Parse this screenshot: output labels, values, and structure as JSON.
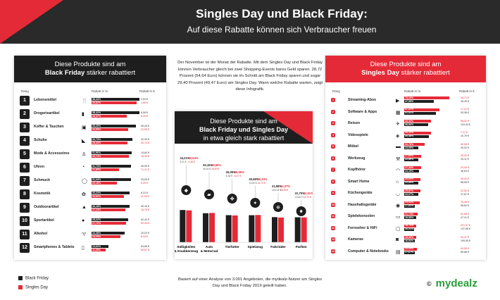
{
  "header": {
    "title": "Singles Day und Black Friday:",
    "subtitle": "Auf diese Rabatte können sich Verbraucher freuen"
  },
  "left_panel": {
    "line1": "Diese Produkte sind am",
    "line2_bold": "Black Friday",
    "line2_rest": " stärker rabattiert",
    "col_rank": "Rang",
    "col_pct": "Rabatt in %",
    "col_eur": "Rabatt in €"
  },
  "right_panel": {
    "line1": "Diese Produkte sind am",
    "line2_bold": "Singles Day",
    "line2_rest": " stärker rabattiert",
    "col_rank": "Rang",
    "col_pct": "Rabatt in %",
    "col_eur": "Rabatt in €"
  },
  "middle": {
    "intro": "Der November ist der Monat der Rabatte. Mit dem Singles Day und Black Friday können Verbraucher gleich bei zwei Shopping-Events bares Geld sparen. 28,72 Prozent (54,64 Euro) können sie im Schnitt am Black Friday sparen und sogar 29,40 Prozent (49,47 Euro) am Singles Day. Wann welche Rabatte warten, zeigt diese Infografik.",
    "panel_line1": "Diese Produkte sind am",
    "panel_line2": "Black Friday und Singles Day",
    "panel_line3": "in etwa gleich stark rabattiert"
  },
  "legend": {
    "black_friday": "Black Friday",
    "singles_day": "Singles Day"
  },
  "footer": "Basiert auf einer Analyse von 3.001 Angeboten, die mydealz-Nutzer am Singles Day und Black Friday 2019 geteilt haben.",
  "logo": {
    "copyright": "©",
    "brand": "mydealz"
  },
  "colors": {
    "black_friday": "#1e1e1e",
    "singles_day": "#e52a37"
  },
  "chart_data": [
    {
      "type": "bar",
      "title": "Diese Produkte sind am Black Friday stärker rabattiert",
      "categories": [
        "Lebensmittel",
        "Drogerieartikel",
        "Koffer & Taschen",
        "Schuhe",
        "Mode & Accessoires",
        "Uhren",
        "Schmuck",
        "Kosmetik",
        "Outdoorartikel",
        "Sportartikel",
        "Alkohol",
        "Smartphones & Tablets"
      ],
      "icons": [
        "cutlery-icon",
        "bottle-icon",
        "suitcase-icon",
        "shoe-icon",
        "shirt-icon",
        "clock-icon",
        "ring-icon",
        "lotus-icon",
        "mountain-icon",
        "ball-icon",
        "wine-icon",
        "phone-icon"
      ],
      "series": [
        {
          "name": "Black Friday",
          "values": [
            38.43,
            38.42,
            35.2,
            32.73,
            31.96,
            31.73,
            31.44,
            30.23,
            30.18,
            29.22,
            26.38,
            13.62
          ],
          "eur": [
            "3,54 €",
            "8,06 €",
            "35,26 €",
            "32,99 €",
            "19,60 €",
            "45,95 €",
            "29,55 €",
            "8,31 €",
            "40,16 €",
            "92,42 €",
            "20,02 €",
            "63,65 €"
          ]
        },
        {
          "name": "Singles Day",
          "values": [
            35.82,
            28.37,
            29.05,
            28.43,
            29.74,
            21.89,
            20.18,
            26.02,
            27.14,
            27.7,
            23.29,
            11.06
          ],
          "eur": [
            "1,69 €",
            "6,30 €",
            "22,59 €",
            "20,73 €",
            "16,44 €",
            "71,11 €",
            "5,29 €",
            "11,04 €",
            "16,76 €",
            "52,43 €",
            "8,34 €",
            "59,67 €"
          ]
        }
      ],
      "xlabel": "Rabatt in %",
      "ylabel": "Rang",
      "xlim": [
        0,
        45
      ]
    },
    {
      "type": "bar",
      "title": "Diese Produkte sind am Black Friday und Singles Day in etwa gleich stark rabattiert",
      "categories": [
        "Süßigkeiten & Knabberzeug",
        "Auto & Motorrad",
        "Tierfutter",
        "Spielzeug",
        "Fahrräder",
        "Parfüm"
      ],
      "icons": [
        "candy-icon",
        "car-icon",
        "paw-icon",
        "toy-icon",
        "bicycle-icon",
        "perfume-icon"
      ],
      "series": [
        {
          "name": "Black Friday",
          "values": [
            34.21,
            29.15,
            26.09,
            25.98,
            22.98,
            22.75
          ],
          "eur": [
            "3,21 €",
            "46,40 €",
            "6,36 €",
            "13,50 €",
            "100,04 €",
            "13,60 €"
          ]
        },
        {
          "name": "Singles Day",
          "values": [
            33.64,
            29.56,
            25.59,
            26.33,
            22.37,
            22.51
          ],
          "eur": [
            "2,48 €",
            "18,00 €",
            "6,47 €",
            "14,73 €",
            "65,59 €",
            "14,79 €"
          ]
        }
      ],
      "ylim": [
        0,
        40
      ]
    },
    {
      "type": "bar",
      "title": "Diese Produkte sind am Singles Day stärker rabattiert",
      "categories": [
        "Streaming-Abos",
        "Software & Apps",
        "Reisen",
        "Videospiele",
        "Möbel",
        "Werkzeug",
        "Kopfhörer",
        "Smart Home",
        "Küchengeräte",
        "Haushaltsgeräte",
        "Spielekonsolen",
        "Fernseher & HiFi",
        "Kameras",
        "Computer & Notebooks"
      ],
      "icons": [
        "play-icon",
        "apps-icon",
        "plane-icon",
        "gamepad-icon",
        "sofa-icon",
        "hammer-icon",
        "headphones-icon",
        "house-icon",
        "pot-icon",
        "washer-icon",
        "console-icon",
        "tv-icon",
        "camera-icon",
        "laptop-icon"
      ],
      "series": [
        {
          "name": "Singles Day",
          "values": [
            73.19,
            57.22,
            43.43,
            43.15,
            32.78,
            27.85,
            27.34,
            26.05,
            25.87,
            25.44,
            21.74,
            19.7,
            19.36,
            20.95
          ],
          "eur": [
            "16,71 €",
            "17,41 €",
            "96,32 €",
            "7,17 €",
            "49,58 €",
            "25,42 €",
            "20,40 €",
            "26,42 €",
            "32,52 €",
            "75,28 €",
            "61,66 €",
            "221,07 €",
            "94,37 €",
            "94,55 €"
          ]
        },
        {
          "name": "Black Friday",
          "values": [
            47.98,
            51.91,
            38.56,
            40.48,
            23.05,
            22.86,
            24.19,
            22.5,
            23.07,
            17.62,
            19.99,
            16.31,
            16.92,
            17.67
          ],
          "eur": [
            "18,49 €",
            "93,36 €",
            "115,43 €",
            "10,76 €",
            "40,92 €",
            "33,11 €",
            "46,64 €",
            "58,08 €",
            "37,87 €",
            "98,60 €",
            "47,41 €",
            "137,96 €",
            "109,55 €",
            "89,88 €"
          ]
        }
      ],
      "xlabel": "Rabatt in %",
      "ylabel": "Rang",
      "xlim": [
        0,
        80
      ]
    }
  ]
}
